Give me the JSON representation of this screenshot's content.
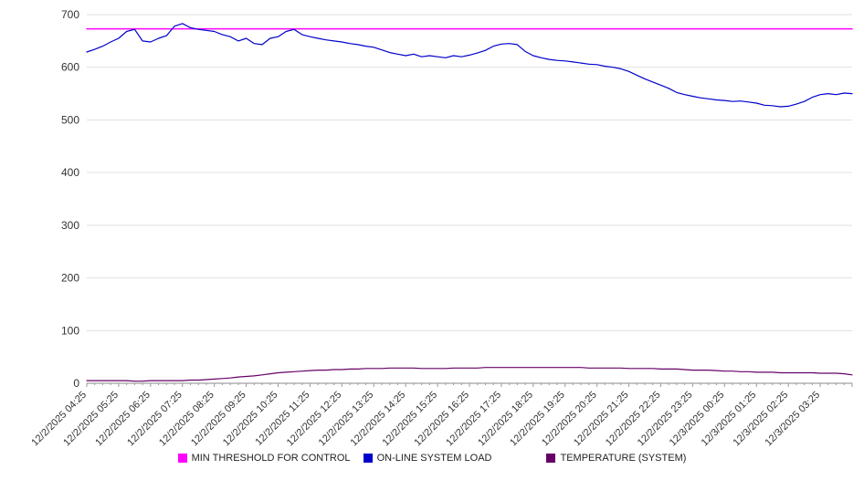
{
  "chart_data": {
    "type": "line",
    "title": "",
    "xlabel": "",
    "ylabel": "",
    "ylim": [
      0,
      700
    ],
    "y_ticks": [
      0,
      100,
      200,
      300,
      400,
      500,
      600,
      700
    ],
    "grid": "horizontal",
    "legend_position": "bottom",
    "x_labels": [
      "12/2/2025 04:25",
      "12/2/2025 05:25",
      "12/2/2025 06:25",
      "12/2/2025 07:25",
      "12/2/2025 08:25",
      "12/2/2025 09:25",
      "12/2/2025 10:25",
      "12/2/2025 11:25",
      "12/2/2025 12:25",
      "12/2/2025 13:25",
      "12/2/2025 14:25",
      "12/2/2025 15:25",
      "12/2/2025 16:25",
      "12/2/2025 17:25",
      "12/2/2025 18:25",
      "12/2/2025 19:25",
      "12/2/2025 20:25",
      "12/2/2025 21:25",
      "12/2/2025 22:25",
      "12/2/2025 23:25",
      "12/3/2025 00:25",
      "12/3/2025 01:25",
      "12/3/2025 02:25",
      "12/3/2025 03:25"
    ],
    "points_per_label_interval": 4,
    "colors": {
      "gridline": "#E2E2E2",
      "axis": "#888888",
      "tick": "#999999",
      "tick_label": "#333333"
    },
    "series": [
      {
        "name": "MIN THRESHOLD FOR CONTROL",
        "color": "#FF00FF",
        "type": "constant",
        "value": 673
      },
      {
        "name": "ON-LINE SYSTEM LOAD",
        "color": "#0000CC",
        "type": "line",
        "values": [
          629,
          634,
          640,
          648,
          655,
          668,
          672,
          650,
          648,
          655,
          660,
          678,
          683,
          675,
          672,
          670,
          668,
          662,
          658,
          650,
          655,
          645,
          643,
          655,
          658,
          668,
          672,
          662,
          658,
          655,
          652,
          650,
          648,
          645,
          643,
          640,
          638,
          633,
          628,
          625,
          622,
          625,
          620,
          622,
          620,
          618,
          622,
          620,
          623,
          627,
          632,
          640,
          644,
          645,
          643,
          630,
          622,
          618,
          615,
          613,
          612,
          610,
          608,
          606,
          605,
          602,
          600,
          597,
          592,
          585,
          578,
          572,
          566,
          560,
          552,
          548,
          545,
          542,
          540,
          538,
          537,
          535,
          536,
          534,
          532,
          528,
          527,
          525,
          526,
          530,
          535,
          543,
          548,
          550,
          548,
          551,
          550
        ]
      },
      {
        "name": "TEMPERATURE (SYSTEM)",
        "color": "#660066",
        "type": "line",
        "values": [
          5,
          5,
          5,
          5,
          5,
          5,
          4,
          4,
          5,
          5,
          5,
          5,
          5,
          6,
          6,
          7,
          8,
          9,
          10,
          12,
          13,
          14,
          16,
          18,
          20,
          21,
          22,
          23,
          24,
          25,
          25,
          26,
          26,
          27,
          27,
          28,
          28,
          28,
          29,
          29,
          29,
          29,
          28,
          28,
          28,
          28,
          29,
          29,
          29,
          29,
          30,
          30,
          30,
          30,
          30,
          30,
          30,
          30,
          30,
          30,
          30,
          30,
          30,
          29,
          29,
          29,
          29,
          29,
          28,
          28,
          28,
          28,
          27,
          27,
          27,
          26,
          25,
          25,
          25,
          24,
          23,
          23,
          22,
          22,
          21,
          21,
          21,
          20,
          20,
          20,
          20,
          20,
          19,
          19,
          19,
          18,
          16
        ]
      }
    ]
  }
}
